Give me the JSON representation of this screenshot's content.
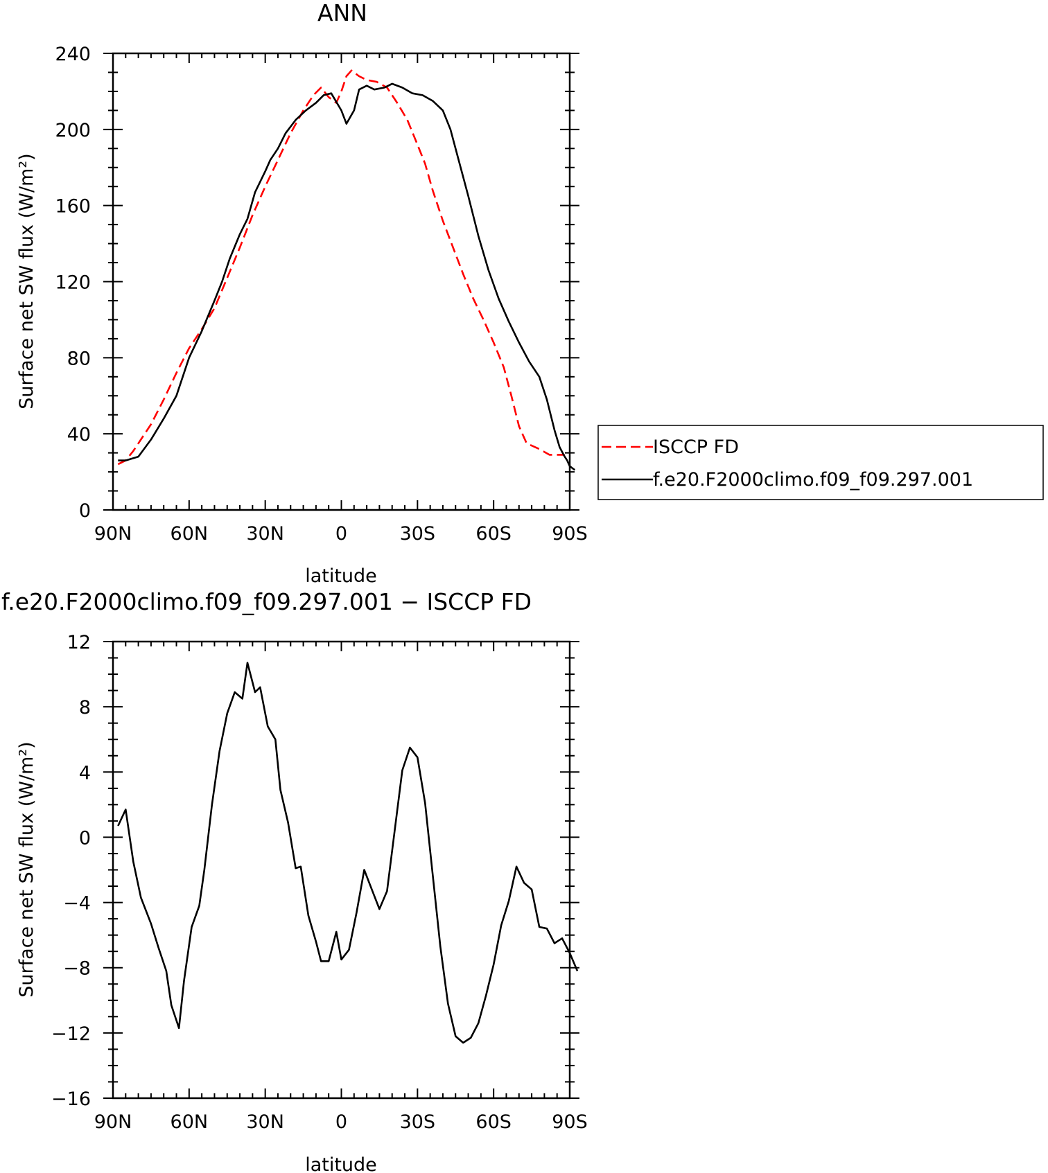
{
  "chart_data": [
    {
      "type": "line",
      "title": "ANN",
      "xlabel": "latitude",
      "ylabel": "Surface net SW flux (W/m²)",
      "xlim": [
        90,
        -90
      ],
      "ylim": [
        0,
        240
      ],
      "x_tick_values": [
        90,
        60,
        30,
        0,
        -30,
        -60,
        -90
      ],
      "x_tick_labels": [
        "90N",
        "60N",
        "30N",
        "0",
        "30S",
        "60S",
        "90S"
      ],
      "y_tick_values": [
        0,
        40,
        80,
        120,
        160,
        200,
        240
      ],
      "y_tick_labels": [
        "0",
        "40",
        "80",
        "120",
        "160",
        "200",
        "240"
      ],
      "legend": {
        "placement": "right",
        "entries": [
          "ISCCP FD",
          "f.e20.F2000climo.f09_f09.297.001"
        ]
      },
      "series": [
        {
          "name": "ISCCP FD",
          "color": "#ff0000",
          "style": "dashed",
          "points": [
            [
              88,
              24
            ],
            [
              85,
              26
            ],
            [
              82,
              31
            ],
            [
              79,
              37
            ],
            [
              75,
              45
            ],
            [
              70,
              58
            ],
            [
              65,
              72
            ],
            [
              60,
              85
            ],
            [
              55,
              95
            ],
            [
              50,
              106
            ],
            [
              45,
              122
            ],
            [
              40,
              138
            ],
            [
              35,
              155
            ],
            [
              30,
              170
            ],
            [
              25,
              184
            ],
            [
              20,
              198
            ],
            [
              15,
              210
            ],
            [
              11,
              218
            ],
            [
              8,
              222
            ],
            [
              5,
              217
            ],
            [
              2,
              214
            ],
            [
              0,
              220
            ],
            [
              -2,
              228
            ],
            [
              -4,
              231
            ],
            [
              -7,
              228
            ],
            [
              -10,
              226
            ],
            [
              -14,
              225
            ],
            [
              -18,
              222
            ],
            [
              -22,
              214
            ],
            [
              -26,
              205
            ],
            [
              -30,
              192
            ],
            [
              -33,
              182
            ],
            [
              -36,
              168
            ],
            [
              -40,
              152
            ],
            [
              -44,
              138
            ],
            [
              -48,
              124
            ],
            [
              -52,
              111
            ],
            [
              -56,
              100
            ],
            [
              -60,
              88
            ],
            [
              -64,
              75
            ],
            [
              -67,
              60
            ],
            [
              -70,
              44
            ],
            [
              -73,
              35
            ],
            [
              -78,
              32
            ],
            [
              -82,
              29
            ],
            [
              -86,
              29
            ],
            [
              -88,
              29
            ]
          ]
        },
        {
          "name": "f.e20.F2000climo.f09_f09.297.001",
          "color": "#000000",
          "style": "solid",
          "points": [
            [
              88,
              26
            ],
            [
              85,
              26
            ],
            [
              80,
              28
            ],
            [
              75,
              37
            ],
            [
              70,
              48
            ],
            [
              65,
              60
            ],
            [
              60,
              80
            ],
            [
              55,
              94
            ],
            [
              50,
              110
            ],
            [
              47,
              120
            ],
            [
              44,
              132
            ],
            [
              40,
              145
            ],
            [
              37,
              153
            ],
            [
              34,
              167
            ],
            [
              30,
              178
            ],
            [
              28,
              184
            ],
            [
              25,
              190
            ],
            [
              22,
              198
            ],
            [
              18,
              205
            ],
            [
              14,
              210
            ],
            [
              10,
              214
            ],
            [
              7,
              218
            ],
            [
              4,
              219
            ],
            [
              0,
              210
            ],
            [
              -2,
              203
            ],
            [
              -5,
              210
            ],
            [
              -7,
              221
            ],
            [
              -10,
              223
            ],
            [
              -13,
              221
            ],
            [
              -17,
              222
            ],
            [
              -20,
              224
            ],
            [
              -24,
              222
            ],
            [
              -28,
              219
            ],
            [
              -32,
              218
            ],
            [
              -36,
              215
            ],
            [
              -40,
              210
            ],
            [
              -43,
              200
            ],
            [
              -46,
              185
            ],
            [
              -50,
              165
            ],
            [
              -54,
              144
            ],
            [
              -58,
              126
            ],
            [
              -62,
              111
            ],
            [
              -66,
              99
            ],
            [
              -70,
              88
            ],
            [
              -74,
              78
            ],
            [
              -78,
              70
            ],
            [
              -81,
              58
            ],
            [
              -84,
              42
            ],
            [
              -86,
              33
            ],
            [
              -88,
              28
            ],
            [
              -89,
              26
            ],
            [
              -90,
              23
            ],
            [
              -91,
              22
            ],
            [
              -92,
              21
            ]
          ]
        }
      ]
    },
    {
      "type": "line",
      "title": "f.e20.F2000climo.f09_f09.297.001 − ISCCP FD",
      "xlabel": "latitude",
      "ylabel": "Surface net SW flux (W/m²)",
      "xlim": [
        90,
        -90
      ],
      "ylim": [
        -16,
        12
      ],
      "x_tick_values": [
        90,
        60,
        30,
        0,
        -30,
        -60,
        -90
      ],
      "x_tick_labels": [
        "90N",
        "60N",
        "30N",
        "0",
        "30S",
        "60S",
        "90S"
      ],
      "y_tick_values": [
        -16,
        -12,
        -8,
        -4,
        0,
        4,
        8,
        12
      ],
      "y_tick_labels": [
        "−16",
        "−12",
        "−8",
        "−4",
        "0",
        "4",
        "8",
        "12"
      ],
      "series": [
        {
          "color": "#000000",
          "style": "solid",
          "points": [
            [
              88,
              0.7
            ],
            [
              85,
              1.7
            ],
            [
              82,
              -1.5
            ],
            [
              79,
              -3.7
            ],
            [
              75,
              -5.3
            ],
            [
              72,
              -6.8
            ],
            [
              69,
              -8.2
            ],
            [
              67,
              -10.3
            ],
            [
              64,
              -11.7
            ],
            [
              62,
              -8.8
            ],
            [
              59,
              -5.5
            ],
            [
              56,
              -4.2
            ],
            [
              54,
              -2.0
            ],
            [
              51,
              2.0
            ],
            [
              48,
              5.3
            ],
            [
              45,
              7.6
            ],
            [
              42,
              8.9
            ],
            [
              39,
              8.5
            ],
            [
              37,
              10.7
            ],
            [
              34,
              8.9
            ],
            [
              32,
              9.2
            ],
            [
              29,
              6.8
            ],
            [
              26,
              6.0
            ],
            [
              24,
              2.9
            ],
            [
              21,
              0.9
            ],
            [
              18,
              -1.9
            ],
            [
              16,
              -1.8
            ],
            [
              13,
              -4.8
            ],
            [
              10,
              -6.4
            ],
            [
              8,
              -7.6
            ],
            [
              5,
              -7.6
            ],
            [
              2,
              -5.8
            ],
            [
              0,
              -7.5
            ],
            [
              -3,
              -6.9
            ],
            [
              -6,
              -4.6
            ],
            [
              -9,
              -2.0
            ],
            [
              -12,
              -3.2
            ],
            [
              -15,
              -4.4
            ],
            [
              -18,
              -3.3
            ],
            [
              -21,
              0.4
            ],
            [
              -24,
              4.1
            ],
            [
              -27,
              5.5
            ],
            [
              -30,
              4.9
            ],
            [
              -33,
              2.1
            ],
            [
              -36,
              -2.3
            ],
            [
              -39,
              -6.7
            ],
            [
              -42,
              -10.2
            ],
            [
              -45,
              -12.2
            ],
            [
              -48,
              -12.6
            ],
            [
              -51,
              -12.3
            ],
            [
              -54,
              -11.4
            ],
            [
              -57,
              -9.7
            ],
            [
              -60,
              -7.8
            ],
            [
              -63,
              -5.4
            ],
            [
              -66,
              -3.9
            ],
            [
              -69,
              -1.8
            ],
            [
              -72,
              -2.8
            ],
            [
              -75,
              -3.2
            ],
            [
              -78,
              -5.5
            ],
            [
              -81,
              -5.6
            ],
            [
              -84,
              -6.5
            ],
            [
              -87,
              -6.2
            ],
            [
              -90,
              -7.1
            ],
            [
              -93,
              -8.2
            ]
          ]
        }
      ]
    }
  ]
}
